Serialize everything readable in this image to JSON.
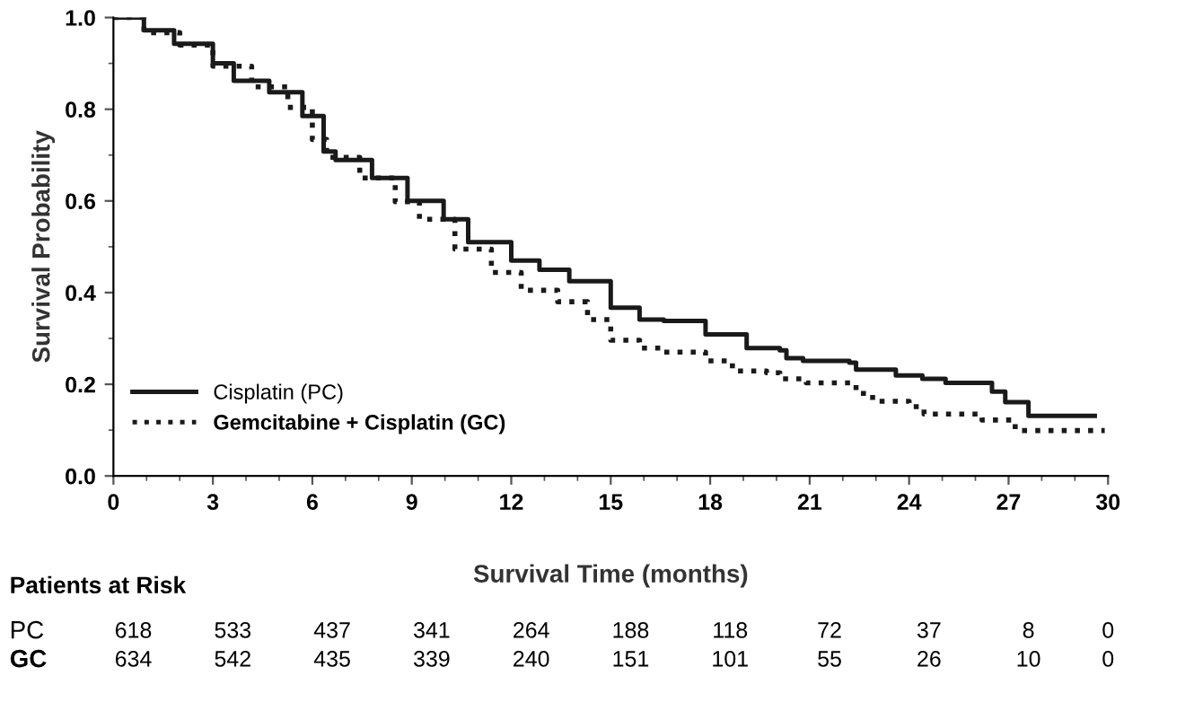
{
  "chart_data": {
    "type": "step",
    "xlabel": "Survival Time (months)",
    "ylabel": "Survival Probability",
    "xlim": [
      0,
      30
    ],
    "xticks": [
      0,
      3,
      6,
      9,
      12,
      15,
      18,
      21,
      24,
      27,
      30
    ],
    "ylim": [
      0,
      1.0
    ],
    "yticks": [
      {
        "value": 0,
        "label": "0.0"
      },
      {
        "value": 0.2,
        "label": "0.2"
      },
      {
        "value": 0.4,
        "label": "0.4"
      },
      {
        "value": 0.6,
        "label": "0.6"
      },
      {
        "value": 0.8,
        "label": "0.8"
      },
      {
        "value": 1.0,
        "label": "1.0"
      }
    ],
    "grid": false,
    "legend": "bottom left",
    "series": [
      {
        "name": "Cisplatin (PC)",
        "color": "#1a1a1a",
        "line_style": "solid",
        "x": [
          0,
          0.92,
          1.83,
          3.0,
          3.63,
          4.7,
          5.7,
          6.34,
          6.7,
          7.8,
          8.87,
          9.96,
          10.7,
          12.0,
          12.85,
          13.75,
          15.0,
          15.87,
          16.6,
          17.86,
          19.1,
          20.1,
          20.3,
          20.8,
          22.2,
          22.4,
          23.4,
          23.6,
          24.4,
          25.1,
          26.5,
          26.9,
          27.6,
          29.6
        ],
        "values": [
          1.0,
          0.972,
          0.943,
          0.9,
          0.862,
          0.837,
          0.785,
          0.708,
          0.689,
          0.65,
          0.6,
          0.56,
          0.51,
          0.47,
          0.45,
          0.425,
          0.367,
          0.341,
          0.338,
          0.309,
          0.279,
          0.274,
          0.257,
          0.251,
          0.247,
          0.232,
          0.232,
          0.219,
          0.212,
          0.203,
          0.184,
          0.161,
          0.131,
          0.131
        ]
      },
      {
        "name": "Gemcitabine + Cisplatin (GC)",
        "color": "#1a1a1a",
        "line_style": "dotted",
        "x": [
          0,
          0.92,
          2.0,
          3.0,
          4.17,
          5.26,
          6.0,
          6.43,
          7.43,
          8.5,
          9.23,
          10.3,
          11.4,
          12.3,
          13.4,
          14.3,
          15.0,
          15.87,
          16.6,
          17.86,
          18.67,
          19.7,
          20.1,
          20.9,
          22.4,
          22.9,
          24.0,
          24.45,
          25.9,
          26.2,
          27.2,
          29.9
        ],
        "values": [
          1.0,
          0.967,
          0.94,
          0.894,
          0.849,
          0.804,
          0.734,
          0.695,
          0.65,
          0.598,
          0.56,
          0.495,
          0.444,
          0.405,
          0.38,
          0.341,
          0.296,
          0.279,
          0.27,
          0.251,
          0.229,
          0.225,
          0.212,
          0.203,
          0.18,
          0.163,
          0.151,
          0.135,
          0.135,
          0.122,
          0.099,
          0.099
        ]
      }
    ],
    "annotations": [
      "Patients at Risk",
      "PC",
      "618",
      "533",
      "437",
      "341",
      "264",
      "188",
      "118",
      "72",
      "37",
      "8",
      "0",
      "GC",
      "634",
      "542",
      "435",
      "339",
      "240",
      "151",
      "101",
      "55",
      "26",
      "10",
      "0"
    ]
  }
}
